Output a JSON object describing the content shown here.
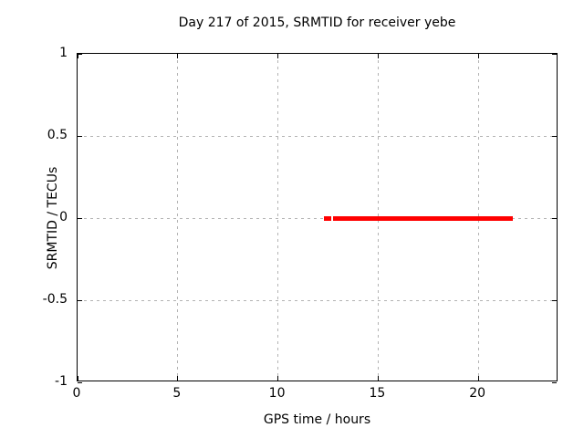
{
  "window": {
    "background": "#ffffff"
  },
  "colors": {
    "series": "#ff0000",
    "grid": "#b3b3b3",
    "border": "#000000",
    "text": "#000000"
  },
  "chart_data": {
    "type": "scatter",
    "title": "Day 217 of 2015, SRMTID for receiver yebe",
    "xlabel": "GPS time / hours",
    "ylabel": "SRMTID / TECUs",
    "xlim": [
      0,
      24
    ],
    "ylim": [
      -1,
      1
    ],
    "grid": true,
    "legend_position": "none",
    "xticks": [
      {
        "value": 0,
        "label": "0"
      },
      {
        "value": 5,
        "label": "5"
      },
      {
        "value": 10,
        "label": "10"
      },
      {
        "value": 15,
        "label": "15"
      },
      {
        "value": 20,
        "label": "20"
      }
    ],
    "yticks": [
      {
        "value": 1,
        "label": "1"
      },
      {
        "value": 0.5,
        "label": "0.5"
      },
      {
        "value": 0,
        "label": "0"
      },
      {
        "value": -0.5,
        "label": "-0.5"
      },
      {
        "value": -1,
        "label": "-1"
      }
    ],
    "grid_x_values": [
      5,
      10,
      15,
      20
    ],
    "grid_y_values": [
      0.5,
      0,
      -0.5
    ],
    "series": [
      {
        "name": "SRMTID",
        "color": "#ff0000",
        "marker": "filled-square",
        "style": "dense points forming horizontal band",
        "segments": [
          {
            "x_start": 12.3,
            "x_end": 12.66,
            "y": 0
          },
          {
            "x_start": 12.77,
            "x_end": 21.72,
            "y": 0
          }
        ]
      }
    ]
  }
}
